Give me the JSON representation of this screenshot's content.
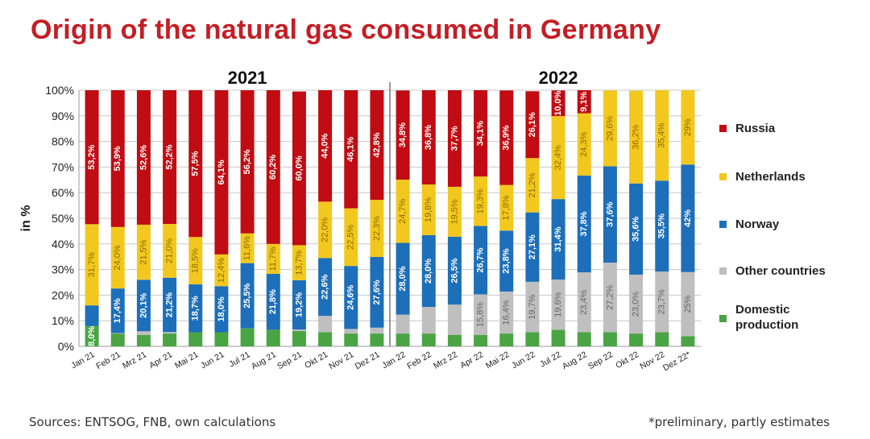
{
  "title": "Origin of the natural gas consumed in Germany",
  "sources": "Sources: ENTSOG, FNB, own calculations",
  "footnote": "*preliminary, partly estimates",
  "colors": {
    "domestic": "#4aa443",
    "other": "#bfbfbf",
    "norway": "#1d6fb9",
    "netherlands": "#f3c81e",
    "russia": "#c00c12"
  },
  "chart_data": {
    "type": "bar",
    "stacked": true,
    "ylabel": "in %",
    "ylim": [
      0,
      100
    ],
    "yticks": [
      "0%",
      "10%",
      "20%",
      "30%",
      "40%",
      "50%",
      "60%",
      "70%",
      "80%",
      "90%",
      "100%"
    ],
    "grid": true,
    "year_labels": [
      "2021",
      "2022"
    ],
    "categories": [
      "Jan 21",
      "Feb 21",
      "Mrz 21",
      "Apr 21",
      "Mai 21",
      "Jun 21",
      "Jul 21",
      "Aug 21",
      "Sep 21",
      "Okt 21",
      "Nov 21",
      "Dez 21",
      "Jan 22",
      "Feb 22",
      "Mrz 22",
      "Apr 22",
      "Mai 22",
      "Jun 22",
      "Jul 22",
      "Aug 22",
      "Sep 22",
      "Okt 22",
      "Nov 22",
      "Dez 22*"
    ],
    "series": [
      {
        "name": "Domestic production",
        "color_key": "domestic",
        "values": [
          8.0,
          5.0,
          4.5,
          5.0,
          5.5,
          5.5,
          7.0,
          6.5,
          6.0,
          5.5,
          5.0,
          5.0,
          5.0,
          5.0,
          4.5,
          4.5,
          5.0,
          5.5,
          6.5,
          5.5,
          5.5,
          5.0,
          5.5,
          4.0
        ],
        "labels": [
          "8,0%",
          "",
          "",
          "",
          "",
          "",
          "",
          "",
          "",
          "",
          "",
          "",
          "",
          "",
          "",
          "",
          "",
          "",
          "",
          "",
          "",
          "",
          "",
          ""
        ]
      },
      {
        "name": "Other countries",
        "color_key": "other",
        "values": [
          0,
          0.2,
          1.4,
          0.6,
          0,
          0,
          0,
          0,
          0.6,
          6.4,
          1.8,
          2.3,
          7.4,
          10.4,
          11.8,
          15.8,
          16.4,
          19.7,
          19.6,
          23.4,
          27.2,
          23.0,
          23.7,
          25.0
        ],
        "labels": [
          "",
          "",
          "",
          "",
          "",
          "",
          "",
          "",
          "",
          "",
          "",
          "",
          "",
          "",
          "",
          "15,8%",
          "16,4%",
          "19,7%",
          "19,6%",
          "23,4%",
          "27,2%",
          "23,0%",
          "23,7%",
          "25%"
        ]
      },
      {
        "name": "Norway",
        "color_key": "norway",
        "values": [
          8.0,
          17.4,
          20.1,
          21.2,
          18.7,
          18.0,
          25.5,
          21.8,
          19.2,
          22.6,
          24.6,
          27.6,
          28.0,
          28.0,
          26.5,
          26.7,
          23.8,
          27.1,
          31.4,
          37.8,
          37.6,
          35.6,
          35.5,
          42.0
        ],
        "labels": [
          "",
          "17,4%",
          "20,1%",
          "21,2%",
          "18,7%",
          "18,0%",
          "25,5%",
          "21,8%",
          "19,2%",
          "22,6%",
          "24,6%",
          "27,6%",
          "28,0%",
          "28,0%",
          "26,5%",
          "26,7%",
          "23,8%",
          "27,1%",
          "31,4%",
          "37,8%",
          "37,6%",
          "35,6%",
          "35,5%",
          "42%"
        ]
      },
      {
        "name": "Netherlands",
        "color_key": "netherlands",
        "values": [
          31.7,
          24.0,
          21.5,
          21.0,
          18.5,
          12.4,
          11.6,
          11.7,
          13.7,
          22.0,
          22.5,
          22.3,
          24.7,
          19.8,
          19.5,
          19.3,
          17.8,
          21.2,
          32.4,
          24.3,
          29.6,
          36.2,
          35.4,
          29.0
        ],
        "labels": [
          "31,7%",
          "24,0%",
          "21,5%",
          "21,0%",
          "18,5%",
          "12,4%",
          "11,6%",
          "11,7%",
          "13,7%",
          "22,0%",
          "22,5%",
          "22,3%",
          "24,7%",
          "19,8%",
          "19,5%",
          "19,3%",
          "17,8%",
          "21,2%",
          "32,4%",
          "24,3%",
          "29,6%",
          "36,2%",
          "35,4%",
          "29%"
        ]
      },
      {
        "name": "Russia",
        "color_key": "russia",
        "values": [
          53.2,
          53.9,
          52.6,
          52.2,
          57.5,
          64.1,
          56.2,
          60.2,
          60.0,
          44.0,
          46.1,
          42.8,
          34.8,
          36.8,
          37.7,
          34.1,
          36.9,
          26.1,
          10.0,
          9.1,
          0,
          0,
          0,
          0
        ],
        "labels": [
          "53,2%",
          "53,9%",
          "52,6%",
          "52,2%",
          "57,5%",
          "64,1%",
          "56,2%",
          "60,2%",
          "60,0%",
          "44,0%",
          "46,1%",
          "42,8%",
          "34,8%",
          "36,8%",
          "37,7%",
          "34,1%",
          "36,9%",
          "26,1%",
          "10,0%",
          "9,1%",
          "",
          "",
          "",
          ""
        ]
      }
    ],
    "legend": {
      "placement": "right",
      "items": [
        {
          "label": "Russia",
          "color_key": "russia"
        },
        {
          "label": "Netherlands",
          "color_key": "netherlands"
        },
        {
          "label": "Norway",
          "color_key": "norway"
        },
        {
          "label": "Other countries",
          "color_key": "other"
        },
        {
          "label": "Domestic production",
          "color_key": "domestic"
        }
      ]
    }
  }
}
